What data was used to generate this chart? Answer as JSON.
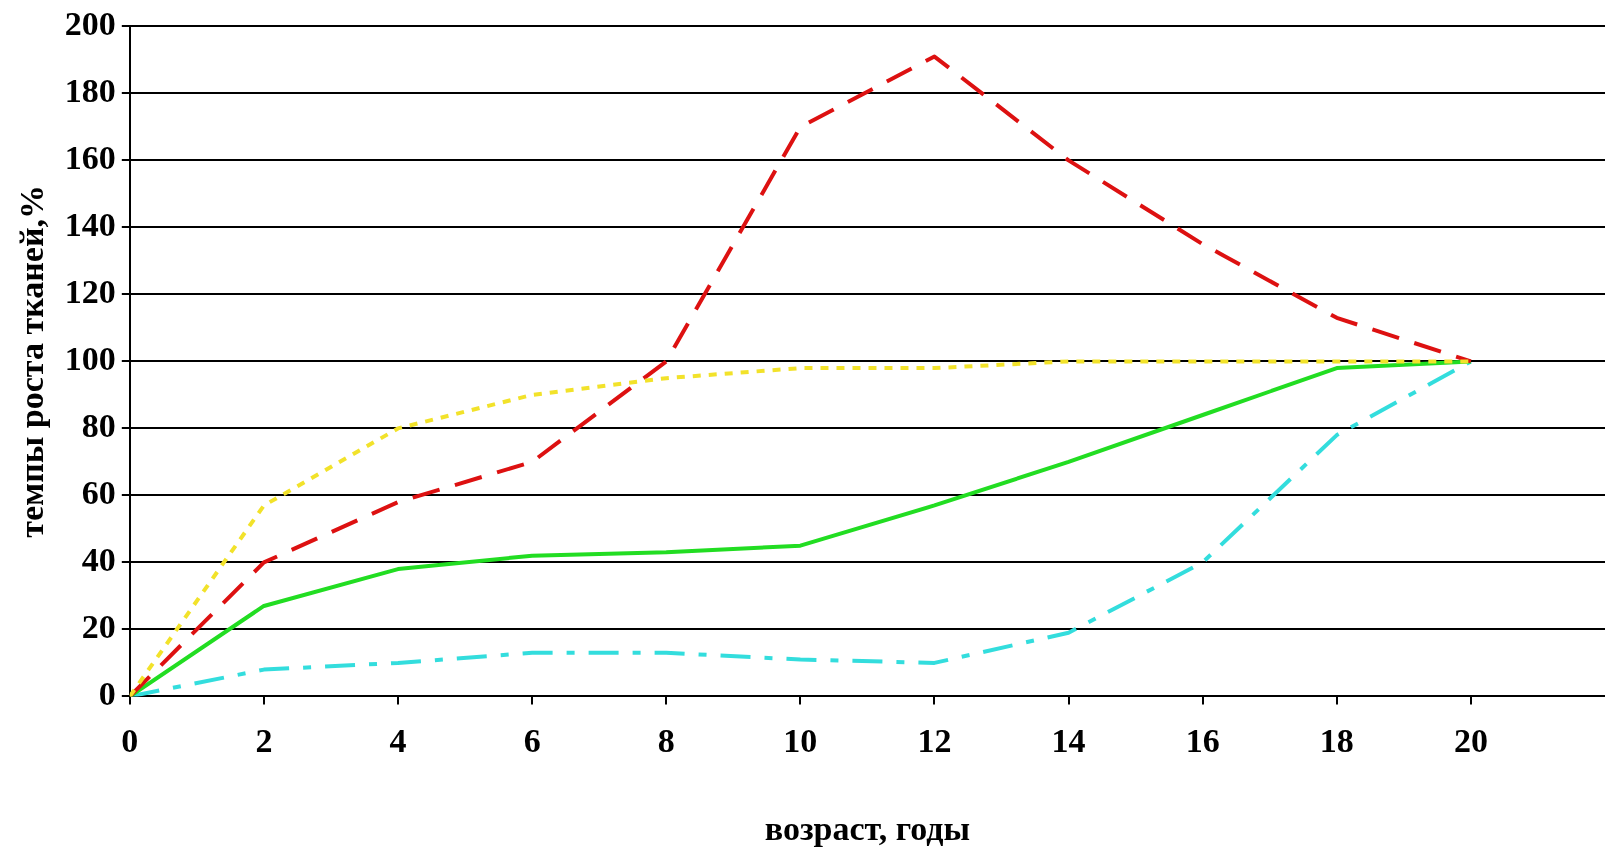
{
  "chart_data": {
    "type": "line",
    "xlabel": "возраст, годы",
    "ylabel": "темпы роста тканей,%",
    "x": [
      0,
      2,
      4,
      6,
      8,
      10,
      12,
      14,
      16,
      18,
      20
    ],
    "series": [
      {
        "color": "#f2e22a",
        "line_style": "dotted",
        "values": [
          0,
          57,
          80,
          90,
          95,
          98,
          98,
          100,
          100,
          100,
          100
        ]
      },
      {
        "color": "#dd1111",
        "line_style": "dashed",
        "values": [
          0,
          40,
          58,
          70,
          100,
          170,
          191,
          160,
          135,
          113,
          100
        ]
      },
      {
        "color": "#22dd22",
        "line_style": "solid",
        "values": [
          0,
          27,
          38,
          42,
          43,
          45,
          57,
          70,
          84,
          98,
          100
        ]
      },
      {
        "color": "#33dddd",
        "line_style": "dashdot",
        "values": [
          0,
          8,
          10,
          13,
          13,
          11,
          10,
          19,
          40,
          78,
          100
        ]
      }
    ],
    "xlim": [
      0,
      22
    ],
    "xticks": [
      0,
      2,
      4,
      6,
      8,
      10,
      12,
      14,
      16,
      18,
      20
    ],
    "ylim": [
      0,
      200
    ],
    "yticks": [
      0,
      20,
      40,
      60,
      80,
      100,
      120,
      140,
      160,
      180,
      200
    ],
    "grid": "y",
    "legend": false,
    "marker": "none"
  }
}
